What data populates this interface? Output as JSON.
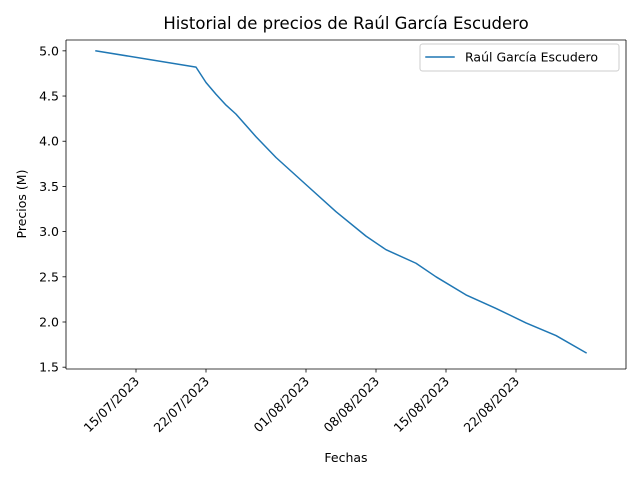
{
  "chart_data": {
    "type": "line",
    "title": "Historial de precios de Raúl García Escudero",
    "xlabel": "Fechas",
    "ylabel": "Precios (M)",
    "x_type": "date",
    "xlim": [
      "2023-07-08",
      "2023-09-02"
    ],
    "ylim": [
      1.48,
      5.12
    ],
    "x_ticks": [
      {
        "value": "2023-07-15",
        "label": "15/07/2023"
      },
      {
        "value": "2023-07-22",
        "label": "22/07/2023"
      },
      {
        "value": "2023-08-01",
        "label": "01/08/2023"
      },
      {
        "value": "2023-08-08",
        "label": "08/08/2023"
      },
      {
        "value": "2023-08-15",
        "label": "15/08/2023"
      },
      {
        "value": "2023-08-22",
        "label": "22/08/2023"
      }
    ],
    "y_ticks": [
      {
        "value": 1.5,
        "label": "1.5"
      },
      {
        "value": 2.0,
        "label": "2.0"
      },
      {
        "value": 2.5,
        "label": "2.5"
      },
      {
        "value": 3.0,
        "label": "3.0"
      },
      {
        "value": 3.5,
        "label": "3.5"
      },
      {
        "value": 4.0,
        "label": "4.0"
      },
      {
        "value": 4.5,
        "label": "4.5"
      },
      {
        "value": 5.0,
        "label": "5.0"
      }
    ],
    "grid": false,
    "legend": {
      "placement": "upper-right"
    },
    "series": [
      {
        "name": "Raúl García Escudero",
        "color": "#1f77b4",
        "x": [
          "2023-07-11",
          "2023-07-21",
          "2023-07-22",
          "2023-07-23",
          "2023-07-24",
          "2023-07-25",
          "2023-07-27",
          "2023-07-29",
          "2023-08-01",
          "2023-08-04",
          "2023-08-07",
          "2023-08-09",
          "2023-08-12",
          "2023-08-14",
          "2023-08-17",
          "2023-08-20",
          "2023-08-23",
          "2023-08-26",
          "2023-08-29"
        ],
        "y": [
          5.0,
          4.82,
          4.65,
          4.52,
          4.4,
          4.3,
          4.05,
          3.82,
          3.52,
          3.22,
          2.95,
          2.8,
          2.65,
          2.5,
          2.3,
          2.15,
          1.99,
          1.85,
          1.66
        ]
      }
    ]
  }
}
